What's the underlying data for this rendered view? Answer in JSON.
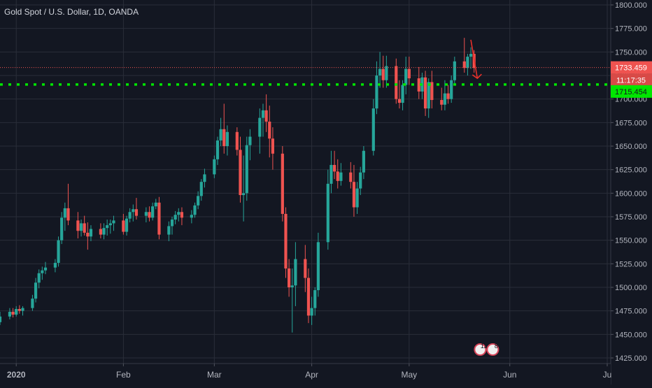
{
  "colors": {
    "background": "#131722",
    "grid": "#2a2e39",
    "axis_text": "#b2b5be",
    "up": "#26a69a",
    "down": "#ef5350",
    "support_line": "#00e600",
    "price_line": "#ef5350",
    "arrow": "#e8302a"
  },
  "chart_data": {
    "type": "candlestick",
    "title": "Gold Spot / U.S. Dollar, 1D, OANDA",
    "xlabel": "",
    "ylabel": "",
    "ylim": [
      1422,
      1800
    ],
    "y_ticks": [
      1425,
      1450,
      1475,
      1500,
      1525,
      1550,
      1575,
      1600,
      1625,
      1650,
      1675,
      1700,
      1725,
      1750,
      1775,
      1800
    ],
    "y_tick_labels": [
      "1425.000",
      "1450.000",
      "1475.000",
      "1500.000",
      "1525.000",
      "1550.000",
      "1575.000",
      "1600.000",
      "1625.000",
      "1650.000",
      "1675.000",
      "1700.000",
      "1725.000",
      "1750.000",
      "1775.000",
      "1800.000"
    ],
    "x_ticks": [
      "2020",
      "Feb",
      "Mar",
      "Apr",
      "May",
      "Jun",
      "Ju"
    ],
    "x_tick_dates": [
      "2020-01-01",
      "2020-02-03",
      "2020-03-02",
      "2020-04-01",
      "2020-05-01",
      "2020-06-01",
      "2020-07-01"
    ],
    "x_range": [
      "2019-12-27",
      "2020-07-01"
    ],
    "grid": true,
    "horizontal_lines": [
      {
        "name": "current-price",
        "value": 1733.459,
        "label": "1733.459",
        "style": "dotted-thin"
      },
      {
        "name": "support",
        "value": 1715.454,
        "label": "1715.454",
        "style": "dotted-thick"
      }
    ],
    "countdown_label": "11:17:35",
    "annotations": [
      {
        "type": "arrow",
        "direction": "down",
        "start": [
          "2020-05-20",
          1763
        ],
        "end": [
          "2020-05-22",
          1722
        ]
      }
    ],
    "event_badges": [
      "11",
      "8"
    ],
    "candles": [
      [
        "2019-12-26",
        1471,
        1472,
        1459,
        1463
      ],
      [
        "2019-12-27",
        1463,
        1474,
        1460,
        1469
      ],
      [
        "2019-12-30",
        1469,
        1478,
        1466,
        1474
      ],
      [
        "2019-12-31",
        1474,
        1478,
        1468,
        1471
      ],
      [
        "2020-01-01",
        1471,
        1480,
        1469,
        1477
      ],
      [
        "2020-01-02",
        1477,
        1481,
        1472,
        1475
      ],
      [
        "2020-01-03",
        1475,
        1480,
        1470,
        1478
      ],
      [
        "2020-01-06",
        1478,
        1492,
        1475,
        1488
      ],
      [
        "2020-01-07",
        1488,
        1510,
        1484,
        1505
      ],
      [
        "2020-01-08",
        1505,
        1519,
        1499,
        1515
      ],
      [
        "2020-01-09",
        1515,
        1522,
        1508,
        1518
      ],
      [
        "2020-01-10",
        1518,
        1527,
        1514,
        1521
      ],
      [
        "2020-01-13",
        1521,
        1530,
        1516,
        1526
      ],
      [
        "2020-01-14",
        1526,
        1554,
        1522,
        1550
      ],
      [
        "2020-01-15",
        1550,
        1580,
        1546,
        1574
      ],
      [
        "2020-01-16",
        1574,
        1590,
        1560,
        1584
      ],
      [
        "2020-01-17",
        1584,
        1610,
        1566,
        1571
      ],
      [
        "2020-01-20",
        1571,
        1580,
        1552,
        1560
      ],
      [
        "2020-01-21",
        1560,
        1572,
        1554,
        1568
      ],
      [
        "2020-01-22",
        1568,
        1576,
        1555,
        1558
      ],
      [
        "2020-01-23",
        1558,
        1569,
        1540,
        1554
      ],
      [
        "2020-01-24",
        1554,
        1566,
        1549,
        1562
      ],
      [
        "2020-01-27",
        1562,
        1568,
        1552,
        1556
      ],
      [
        "2020-01-28",
        1556,
        1568,
        1551,
        1563
      ],
      [
        "2020-01-29",
        1563,
        1572,
        1555,
        1566
      ],
      [
        "2020-01-30",
        1566,
        1572,
        1557,
        1568
      ],
      [
        "2020-01-31",
        1568,
        1576,
        1560,
        1571
      ],
      [
        "2020-02-03",
        1571,
        1578,
        1556,
        1559
      ],
      [
        "2020-02-04",
        1559,
        1576,
        1555,
        1573
      ],
      [
        "2020-02-05",
        1573,
        1584,
        1569,
        1580
      ],
      [
        "2020-02-06",
        1580,
        1588,
        1570,
        1583
      ],
      [
        "2020-02-07",
        1583,
        1595,
        1572,
        1576
      ],
      [
        "2020-02-10",
        1576,
        1585,
        1569,
        1580
      ],
      [
        "2020-02-11",
        1580,
        1586,
        1570,
        1574
      ],
      [
        "2020-02-12",
        1574,
        1590,
        1571,
        1586
      ],
      [
        "2020-02-13",
        1586,
        1594,
        1583,
        1590
      ],
      [
        "2020-02-14",
        1590,
        1596,
        1551,
        1556
      ],
      [
        "2020-02-17",
        1556,
        1570,
        1549,
        1565
      ],
      [
        "2020-02-18",
        1565,
        1575,
        1556,
        1572
      ],
      [
        "2020-02-19",
        1572,
        1581,
        1567,
        1577
      ],
      [
        "2020-02-20",
        1577,
        1584,
        1570,
        1580
      ],
      [
        "2020-02-21",
        1580,
        1585,
        1566,
        1574
      ],
      [
        "2020-02-24",
        1574,
        1582,
        1568,
        1577
      ],
      [
        "2020-02-25",
        1577,
        1590,
        1574,
        1587
      ],
      [
        "2020-02-26",
        1587,
        1602,
        1583,
        1597
      ],
      [
        "2020-02-27",
        1597,
        1615,
        1592,
        1612
      ],
      [
        "2020-02-28",
        1612,
        1626,
        1606,
        1620
      ],
      [
        "2020-03-02",
        1620,
        1640,
        1616,
        1636
      ],
      [
        "2020-03-03",
        1636,
        1660,
        1630,
        1656
      ],
      [
        "2020-03-04",
        1656,
        1680,
        1650,
        1668
      ],
      [
        "2020-03-05",
        1668,
        1695,
        1642,
        1650
      ],
      [
        "2020-03-06",
        1650,
        1672,
        1640,
        1665
      ],
      [
        "2020-03-09",
        1665,
        1670,
        1640,
        1646
      ],
      [
        "2020-03-10",
        1646,
        1660,
        1590,
        1598
      ],
      [
        "2020-03-11",
        1598,
        1640,
        1570,
        1600
      ],
      [
        "2020-03-12",
        1600,
        1660,
        1592,
        1651
      ],
      [
        "2020-03-13",
        1651,
        1668,
        1635,
        1660
      ],
      [
        "2020-03-16",
        1660,
        1690,
        1642,
        1680
      ],
      [
        "2020-03-17",
        1680,
        1695,
        1660,
        1688
      ],
      [
        "2020-03-18",
        1688,
        1705,
        1665,
        1676
      ],
      [
        "2020-03-19",
        1676,
        1693,
        1638,
        1658
      ],
      [
        "2020-03-20",
        1658,
        1670,
        1625,
        1642
      ],
      [
        "2020-03-23",
        1642,
        1650,
        1570,
        1578
      ],
      [
        "2020-03-24",
        1578,
        1585,
        1510,
        1520
      ],
      [
        "2020-03-25",
        1520,
        1530,
        1490,
        1500
      ],
      [
        "2020-03-26",
        1500,
        1520,
        1452,
        1502
      ],
      [
        "2020-03-27",
        1502,
        1548,
        1480,
        1530
      ],
      [
        "2020-03-30",
        1530,
        1545,
        1495,
        1510
      ],
      [
        "2020-03-31",
        1510,
        1520,
        1462,
        1470
      ],
      [
        "2020-04-01",
        1470,
        1490,
        1460,
        1478
      ],
      [
        "2020-04-02",
        1478,
        1500,
        1470,
        1497
      ],
      [
        "2020-04-03",
        1497,
        1558,
        1490,
        1548
      ],
      [
        "2020-04-06",
        1548,
        1625,
        1540,
        1610
      ],
      [
        "2020-04-07",
        1610,
        1645,
        1600,
        1630
      ],
      [
        "2020-04-08",
        1630,
        1645,
        1615,
        1623
      ],
      [
        "2020-04-09",
        1623,
        1636,
        1605,
        1613
      ],
      [
        "2020-04-10",
        1613,
        1632,
        1608,
        1622
      ],
      [
        "2020-04-13",
        1622,
        1633,
        1605,
        1612
      ],
      [
        "2020-04-14",
        1612,
        1630,
        1575,
        1585
      ],
      [
        "2020-04-15",
        1585,
        1612,
        1578,
        1605
      ],
      [
        "2020-04-16",
        1605,
        1628,
        1598,
        1622
      ],
      [
        "2020-04-17",
        1622,
        1650,
        1615,
        1645
      ],
      [
        "2020-04-20",
        1645,
        1700,
        1640,
        1690
      ],
      [
        "2020-04-21",
        1690,
        1740,
        1684,
        1725
      ],
      [
        "2020-04-22",
        1725,
        1750,
        1712,
        1732
      ],
      [
        "2020-04-23",
        1732,
        1746,
        1712,
        1720
      ],
      [
        "2020-04-24",
        1720,
        1746,
        1712,
        1735
      ],
      [
        "2020-04-27",
        1735,
        1743,
        1695,
        1700
      ],
      [
        "2020-04-28",
        1700,
        1720,
        1690,
        1696
      ],
      [
        "2020-04-29",
        1696,
        1720,
        1688,
        1715
      ],
      [
        "2020-04-30",
        1715,
        1745,
        1705,
        1732
      ],
      [
        "2020-05-01",
        1732,
        1745,
        1715,
        1722
      ],
      [
        "2020-05-04",
        1722,
        1734,
        1700,
        1708
      ],
      [
        "2020-05-05",
        1708,
        1728,
        1700,
        1723
      ],
      [
        "2020-05-06",
        1723,
        1730,
        1682,
        1690
      ],
      [
        "2020-05-07",
        1690,
        1722,
        1680,
        1718
      ],
      [
        "2020-05-08",
        1718,
        1730,
        1690,
        1699
      ],
      [
        "2020-05-11",
        1699,
        1712,
        1688,
        1694
      ],
      [
        "2020-05-12",
        1694,
        1720,
        1688,
        1706
      ],
      [
        "2020-05-13",
        1706,
        1715,
        1695,
        1700
      ],
      [
        "2020-05-14",
        1700,
        1725,
        1696,
        1720
      ],
      [
        "2020-05-15",
        1720,
        1745,
        1715,
        1740
      ],
      [
        "2020-05-18",
        1740,
        1765,
        1728,
        1733
      ],
      [
        "2020-05-19",
        1733,
        1748,
        1725,
        1745
      ],
      [
        "2020-05-20",
        1745,
        1755,
        1732,
        1748
      ],
      [
        "2020-05-21",
        1748,
        1752,
        1728,
        1733
      ]
    ]
  }
}
